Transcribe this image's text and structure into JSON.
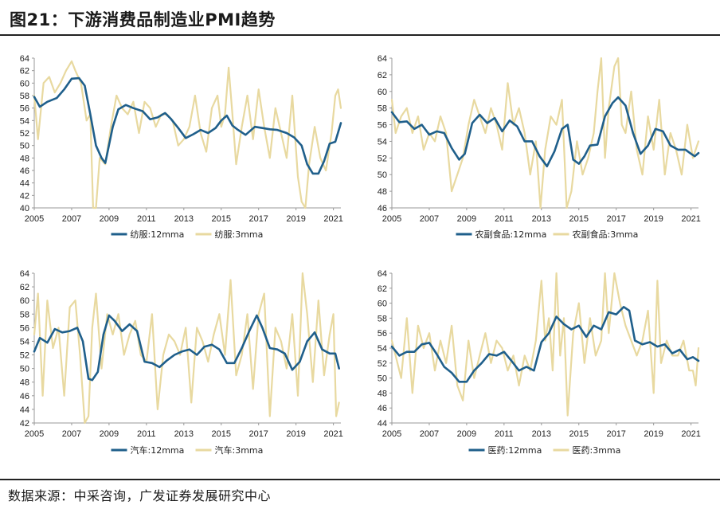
{
  "title": "图21：下游消费品制造业PMI趋势",
  "source": "数据来源：中采咨询，广发证券发展研究中心",
  "colors": {
    "series_12mma": "#1f5f8b",
    "series_3mma": "#e8d9a0",
    "axis": "#999999"
  },
  "chart_data": [
    {
      "type": "line",
      "title": "",
      "xlabel": "",
      "ylabel": "",
      "xlim": [
        2005,
        2021.4
      ],
      "ylim": [
        40,
        64
      ],
      "yticks": [
        40,
        42,
        44,
        46,
        48,
        50,
        52,
        54,
        56,
        58,
        60,
        62,
        64
      ],
      "xticks": [
        2005,
        2007,
        2009,
        2011,
        2013,
        2015,
        2017,
        2019,
        2021
      ],
      "series": [
        {
          "name": "纺服:12mma",
          "x": [
            2005.0,
            2005.3,
            2005.7,
            2006.2,
            2006.6,
            2007.0,
            2007.4,
            2007.7,
            2008.0,
            2008.3,
            2008.6,
            2008.8,
            2009.2,
            2009.5,
            2009.9,
            2010.3,
            2010.8,
            2011.2,
            2011.6,
            2012.0,
            2012.3,
            2012.7,
            2013.1,
            2013.5,
            2013.9,
            2014.3,
            2014.7,
            2015.0,
            2015.3,
            2015.6,
            2015.9,
            2016.3,
            2016.8,
            2017.2,
            2017.6,
            2018.0,
            2018.5,
            2018.9,
            2019.3,
            2019.6,
            2019.9,
            2020.2,
            2020.5,
            2020.8,
            2021.1,
            2021.4
          ],
          "values": [
            57.8,
            56.2,
            57,
            57.6,
            59,
            60.7,
            60.8,
            59.6,
            55,
            50,
            48,
            47.2,
            53,
            55.8,
            56.5,
            56,
            55.5,
            54.2,
            54.5,
            55.2,
            54.3,
            52.8,
            51.2,
            51.8,
            52.5,
            52,
            52.8,
            54,
            54.8,
            53.2,
            52.5,
            51.7,
            53,
            52.8,
            52.6,
            52.5,
            52,
            51.3,
            50,
            47,
            45.5,
            45.5,
            47.5,
            50.3,
            50.6,
            53.6
          ]
        },
        {
          "name": "纺服:3mma",
          "x": [
            2005.0,
            2005.2,
            2005.5,
            2005.8,
            2006.1,
            2006.4,
            2006.7,
            2007.0,
            2007.2,
            2007.5,
            2007.8,
            2008.0,
            2008.15,
            2008.3,
            2008.5,
            2008.8,
            2009.1,
            2009.4,
            2009.7,
            2010.0,
            2010.3,
            2010.6,
            2010.9,
            2011.2,
            2011.5,
            2011.8,
            2012.1,
            2012.4,
            2012.7,
            2013.0,
            2013.3,
            2013.6,
            2013.9,
            2014.2,
            2014.5,
            2014.8,
            2015.0,
            2015.2,
            2015.4,
            2015.6,
            2015.8,
            2016.1,
            2016.4,
            2016.7,
            2017.0,
            2017.3,
            2017.6,
            2017.9,
            2018.2,
            2018.5,
            2018.8,
            2019.1,
            2019.3,
            2019.5,
            2019.7,
            2020.0,
            2020.3,
            2020.6,
            2020.9,
            2021.1,
            2021.25,
            2021.4
          ],
          "values": [
            58,
            51,
            60,
            61,
            58.5,
            60,
            62,
            63.5,
            62,
            60,
            54,
            55,
            40,
            40,
            48,
            47,
            53,
            58,
            56,
            55,
            57,
            52,
            57,
            56,
            53,
            55,
            55,
            54,
            50,
            51,
            53,
            58,
            52,
            49,
            56,
            58,
            53,
            55,
            62.5,
            55,
            47,
            53,
            58,
            51,
            59,
            53,
            48,
            56,
            52,
            48,
            58,
            45,
            41,
            40,
            47,
            53,
            48,
            46,
            52,
            58,
            59,
            56
          ]
        }
      ]
    },
    {
      "type": "line",
      "title": "",
      "xlabel": "",
      "ylabel": "",
      "xlim": [
        2005,
        2021.4
      ],
      "ylim": [
        46,
        64
      ],
      "yticks": [
        46,
        48,
        50,
        52,
        54,
        56,
        58,
        60,
        62,
        64
      ],
      "xticks": [
        2005,
        2007,
        2009,
        2011,
        2013,
        2015,
        2017,
        2019,
        2021
      ],
      "series": [
        {
          "name": "农副食品:12mma",
          "x": [
            2005.0,
            2005.4,
            2005.8,
            2006.2,
            2006.6,
            2007.0,
            2007.4,
            2007.8,
            2008.2,
            2008.6,
            2008.9,
            2009.3,
            2009.7,
            2010.1,
            2010.5,
            2010.9,
            2011.3,
            2011.7,
            2012.1,
            2012.5,
            2012.9,
            2013.3,
            2013.7,
            2014.1,
            2014.4,
            2014.7,
            2015.0,
            2015.3,
            2015.6,
            2016.0,
            2016.4,
            2016.8,
            2017.1,
            2017.5,
            2017.9,
            2018.3,
            2018.7,
            2019.1,
            2019.5,
            2019.9,
            2020.3,
            2020.7,
            2021.0,
            2021.2,
            2021.4
          ],
          "values": [
            57.5,
            56.3,
            56.4,
            55.5,
            56,
            54.8,
            55.2,
            55,
            53.2,
            51.8,
            52.5,
            56.2,
            57.2,
            56.2,
            56.8,
            55.2,
            56.5,
            55.8,
            54,
            54,
            52.2,
            51,
            52.8,
            55.5,
            56,
            51.8,
            51.3,
            52.2,
            53.5,
            53.6,
            57,
            58.6,
            59.3,
            58.3,
            55,
            52.5,
            53.5,
            55.5,
            55.2,
            53.5,
            53,
            53,
            52.5,
            52.2,
            52.6
          ]
        },
        {
          "name": "农副食品:3mma",
          "x": [
            2005.0,
            2005.2,
            2005.5,
            2005.8,
            2006.1,
            2006.4,
            2006.7,
            2007.0,
            2007.3,
            2007.6,
            2007.9,
            2008.2,
            2008.5,
            2008.8,
            2009.1,
            2009.4,
            2009.7,
            2010.0,
            2010.3,
            2010.6,
            2010.9,
            2011.2,
            2011.5,
            2011.8,
            2012.1,
            2012.4,
            2012.7,
            2012.95,
            2013.2,
            2013.5,
            2013.8,
            2014.1,
            2014.35,
            2014.6,
            2014.9,
            2015.2,
            2015.5,
            2015.8,
            2016.0,
            2016.2,
            2016.4,
            2016.6,
            2016.9,
            2017.1,
            2017.3,
            2017.5,
            2017.8,
            2018.1,
            2018.4,
            2018.7,
            2019.0,
            2019.3,
            2019.6,
            2019.9,
            2020.2,
            2020.5,
            2020.8,
            2021.1,
            2021.4
          ],
          "values": [
            59,
            55,
            57,
            58,
            55,
            57,
            53,
            55,
            54,
            57,
            55,
            48,
            50,
            52,
            56,
            59,
            57,
            55,
            58,
            56,
            53,
            61,
            56,
            58,
            55,
            50,
            54,
            46,
            53,
            57,
            56,
            59,
            46,
            48,
            54,
            50,
            52,
            55,
            60,
            64,
            52,
            58,
            63,
            64,
            56,
            55,
            60,
            53,
            50,
            57,
            53,
            59,
            50,
            55,
            53,
            50,
            56,
            52,
            54
          ]
        }
      ]
    },
    {
      "type": "line",
      "title": "",
      "xlabel": "",
      "ylabel": "",
      "xlim": [
        2005,
        2021.4
      ],
      "ylim": [
        42,
        64
      ],
      "yticks": [
        42,
        44,
        46,
        48,
        50,
        52,
        54,
        56,
        58,
        60,
        62,
        64
      ],
      "xticks": [
        2005,
        2007,
        2009,
        2011,
        2013,
        2015,
        2017,
        2019,
        2021
      ],
      "series": [
        {
          "name": "汽车:12mma",
          "x": [
            2005.0,
            2005.3,
            2005.7,
            2006.1,
            2006.5,
            2006.9,
            2007.3,
            2007.6,
            2007.9,
            2008.1,
            2008.4,
            2008.7,
            2009.0,
            2009.3,
            2009.7,
            2010.1,
            2010.5,
            2010.9,
            2011.3,
            2011.7,
            2012.1,
            2012.5,
            2012.9,
            2013.3,
            2013.7,
            2014.1,
            2014.5,
            2014.9,
            2015.3,
            2015.7,
            2016.1,
            2016.5,
            2016.9,
            2017.2,
            2017.6,
            2018.0,
            2018.4,
            2018.8,
            2019.2,
            2019.6,
            2020.0,
            2020.4,
            2020.8,
            2021.1,
            2021.3
          ],
          "values": [
            52.5,
            54.5,
            53.8,
            55.8,
            55.3,
            55.5,
            56,
            54,
            48.5,
            48.3,
            49.5,
            55,
            57.8,
            57,
            55.5,
            56.5,
            55.5,
            51,
            50.8,
            50.2,
            51.2,
            52,
            52.5,
            52.8,
            52,
            53.2,
            53.5,
            52.8,
            50.8,
            50.8,
            53,
            55.5,
            57.8,
            56,
            53,
            52.8,
            52.2,
            49.8,
            51,
            54,
            55.3,
            52.8,
            52.2,
            52.2,
            50
          ]
        },
        {
          "name": "汽车:3mma",
          "x": [
            2005.0,
            2005.2,
            2005.45,
            2005.7,
            2006.0,
            2006.3,
            2006.6,
            2006.9,
            2007.2,
            2007.45,
            2007.7,
            2007.9,
            2008.1,
            2008.3,
            2008.6,
            2008.9,
            2009.2,
            2009.5,
            2009.8,
            2010.1,
            2010.4,
            2010.7,
            2011.0,
            2011.3,
            2011.6,
            2011.9,
            2012.2,
            2012.5,
            2012.8,
            2013.1,
            2013.4,
            2013.7,
            2014.0,
            2014.3,
            2014.6,
            2014.9,
            2015.2,
            2015.5,
            2015.8,
            2016.1,
            2016.4,
            2016.7,
            2017.0,
            2017.3,
            2017.6,
            2017.9,
            2018.2,
            2018.5,
            2018.8,
            2019.1,
            2019.35,
            2019.6,
            2019.9,
            2020.2,
            2020.5,
            2020.8,
            2021.0,
            2021.15,
            2021.3
          ],
          "values": [
            55,
            61,
            46,
            60,
            53,
            56,
            46,
            59,
            60,
            52,
            42,
            43,
            56,
            61,
            50,
            58,
            55,
            58,
            52,
            55,
            57,
            52,
            51,
            58,
            44,
            52,
            55,
            54,
            52,
            56,
            45,
            56,
            54,
            51,
            55,
            58,
            52,
            63,
            49,
            52,
            58,
            47,
            58,
            61,
            43,
            56,
            54,
            50,
            58,
            46,
            64,
            58,
            48,
            60,
            49,
            55,
            58,
            43,
            45
          ]
        }
      ]
    },
    {
      "type": "line",
      "title": "",
      "xlabel": "",
      "ylabel": "",
      "xlim": [
        2005,
        2021.4
      ],
      "ylim": [
        44,
        64
      ],
      "yticks": [
        44,
        46,
        48,
        50,
        52,
        54,
        56,
        58,
        60,
        62,
        64
      ],
      "xticks": [
        2005,
        2007,
        2009,
        2011,
        2013,
        2015,
        2017,
        2019,
        2021
      ],
      "series": [
        {
          "name": "医药:12mma",
          "x": [
            2005.0,
            2005.4,
            2005.8,
            2006.2,
            2006.6,
            2007.0,
            2007.4,
            2007.8,
            2008.2,
            2008.6,
            2009.0,
            2009.4,
            2009.8,
            2010.2,
            2010.6,
            2011.0,
            2011.4,
            2011.8,
            2012.2,
            2012.6,
            2013.0,
            2013.4,
            2013.8,
            2014.2,
            2014.6,
            2015.0,
            2015.4,
            2015.8,
            2016.2,
            2016.6,
            2017.0,
            2017.4,
            2017.7,
            2018.0,
            2018.4,
            2018.8,
            2019.2,
            2019.6,
            2020.0,
            2020.4,
            2020.8,
            2021.1,
            2021.4
          ],
          "values": [
            54.2,
            53,
            53.5,
            53.5,
            54.5,
            54.7,
            53.2,
            51.5,
            50.7,
            49.5,
            49.5,
            51,
            52,
            53.2,
            53,
            53.5,
            52.3,
            51,
            51.5,
            51,
            54.8,
            56,
            58.2,
            57.2,
            56.5,
            57,
            55.5,
            57,
            56.5,
            58.8,
            58.5,
            59.5,
            59,
            55,
            54.5,
            54.8,
            54.2,
            54.5,
            53.3,
            53.8,
            52.5,
            52.8,
            52.3
          ]
        },
        {
          "name": "医药:3mma",
          "x": [
            2005.0,
            2005.2,
            2005.5,
            2005.8,
            2006.1,
            2006.4,
            2006.7,
            2007.0,
            2007.3,
            2007.6,
            2007.9,
            2008.2,
            2008.5,
            2008.8,
            2009.1,
            2009.4,
            2009.7,
            2010.0,
            2010.3,
            2010.6,
            2010.9,
            2011.2,
            2011.5,
            2011.8,
            2012.1,
            2012.4,
            2012.7,
            2013.0,
            2013.2,
            2013.4,
            2013.6,
            2013.8,
            2014.0,
            2014.2,
            2014.4,
            2014.7,
            2015.0,
            2015.3,
            2015.6,
            2015.9,
            2016.2,
            2016.4,
            2016.6,
            2016.9,
            2017.2,
            2017.5,
            2017.8,
            2018.1,
            2018.4,
            2018.7,
            2019.0,
            2019.2,
            2019.4,
            2019.7,
            2020.0,
            2020.3,
            2020.6,
            2020.9,
            2021.1,
            2021.25,
            2021.4
          ],
          "values": [
            55,
            53,
            50,
            58,
            48,
            57,
            54,
            56,
            51,
            55,
            52,
            57,
            49,
            47,
            55,
            50,
            53,
            56,
            52,
            55,
            54,
            51,
            53,
            49,
            53,
            51,
            55,
            63,
            55,
            58,
            51,
            64,
            53,
            58,
            45,
            56,
            60,
            52,
            58,
            53,
            55,
            64,
            56,
            64,
            60,
            57,
            55,
            53,
            55,
            59,
            48,
            63,
            52,
            55,
            53,
            53,
            55,
            51,
            51,
            49,
            54
          ]
        }
      ]
    }
  ]
}
